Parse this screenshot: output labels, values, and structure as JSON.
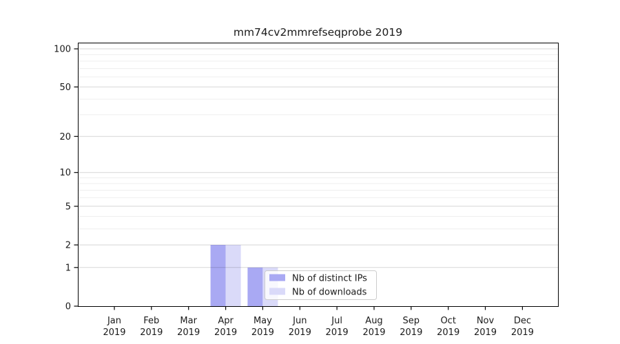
{
  "chart_data": {
    "type": "bar",
    "title": "mm74cv2mmrefseqprobe 2019",
    "categories": [
      "Jan",
      "Feb",
      "Mar",
      "Apr",
      "May",
      "Jun",
      "Jul",
      "Aug",
      "Sep",
      "Oct",
      "Nov",
      "Dec"
    ],
    "x_tick_year": "2019",
    "series": [
      {
        "name": "Nb of distinct IPs",
        "color": "#a9a9f3",
        "values": [
          0,
          0,
          0,
          2,
          1,
          0,
          0,
          0,
          0,
          0,
          0,
          0
        ]
      },
      {
        "name": "Nb of downloads",
        "color": "#dadaf9",
        "values": [
          0,
          0,
          0,
          2,
          1,
          0,
          0,
          0,
          0,
          0,
          0,
          0
        ]
      }
    ],
    "y_axis": {
      "scale": "log1p",
      "ticks": [
        0,
        1,
        2,
        5,
        10,
        20,
        50,
        100
      ],
      "minor_ticks": [
        3,
        4,
        6,
        7,
        8,
        9,
        30,
        40,
        60,
        70,
        80,
        90
      ],
      "range": [
        0,
        112
      ]
    },
    "xlabel": "",
    "ylabel": "",
    "grid": true,
    "legend": {
      "position": "lower center",
      "labels": [
        "Nb of distinct IPs",
        "Nb of downloads"
      ]
    },
    "colors": {
      "axis": "#000000",
      "tick_text": "#1a1a1a",
      "grid_major": "rgba(0,0,0,0.16)",
      "grid_minor": "rgba(0,0,0,0.065)",
      "legend_bg": "#ffffff",
      "legend_border": "#cccccc",
      "background": "#ffffff"
    }
  }
}
